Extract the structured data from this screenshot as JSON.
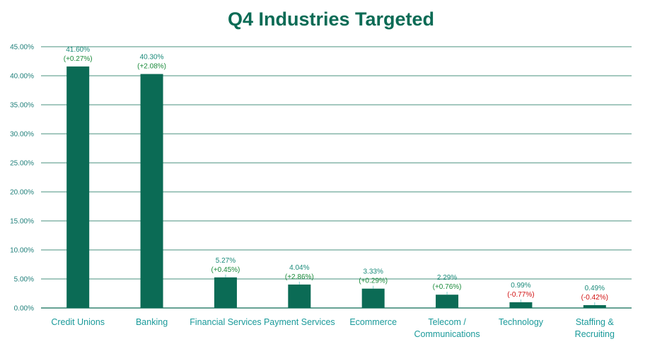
{
  "chart_data": {
    "type": "bar",
    "title": "Q4 Industries Targeted",
    "xlabel": "",
    "ylabel": "",
    "ylim": [
      0,
      45
    ],
    "y_ticks": [
      "0.00%",
      "5.00%",
      "10.00%",
      "15.00%",
      "20.00%",
      "25.00%",
      "30.00%",
      "35.00%",
      "40.00%",
      "45.00%"
    ],
    "grid": true,
    "legend": "none",
    "categories": [
      [
        "Credit Unions"
      ],
      [
        "Banking"
      ],
      [
        "Financial Services"
      ],
      [
        "Payment Services"
      ],
      [
        "Ecommerce"
      ],
      [
        "Telecom /",
        "Communications"
      ],
      [
        "Technology"
      ],
      [
        "Staffing &",
        "Recruiting"
      ]
    ],
    "values": [
      41.6,
      40.3,
      5.27,
      4.04,
      3.33,
      2.29,
      0.99,
      0.49
    ],
    "value_labels": [
      "41.60%",
      "40.30%",
      "5.27%",
      "4.04%",
      "3.33%",
      "2.29%",
      "0.99%",
      "0.49%"
    ],
    "change_labels": [
      "(+0.27%)",
      "(+2.08%)",
      "(+0.45%)",
      "(+2.86%)",
      "(+0.29%)",
      "(+0.76%)",
      "(-0.77%)",
      "(-0.42%)"
    ],
    "change_values": [
      0.27,
      2.08,
      0.45,
      2.86,
      0.29,
      0.76,
      -0.77,
      -0.42
    ],
    "colors": {
      "bar": "#0b6b55",
      "title": "#0b6b55",
      "positive": "#1a8a3a",
      "negative": "#d01010",
      "axis_text": "#1a9a9a",
      "grid": "#0b6b55"
    }
  }
}
